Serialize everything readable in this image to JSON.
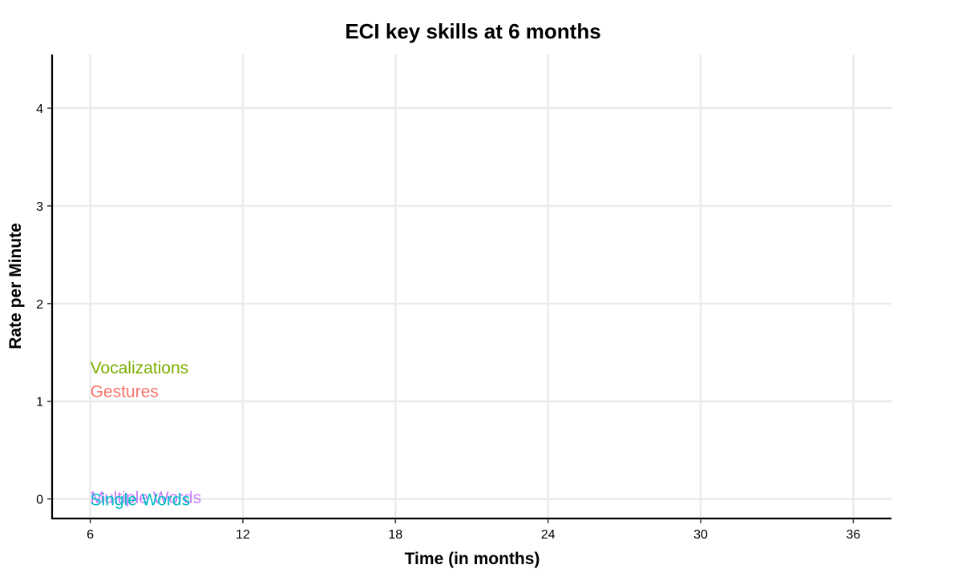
{
  "chart_data": {
    "type": "scatter",
    "title": "ECI key skills at 6 months",
    "xlabel": "Time (in months)",
    "ylabel": "Rate per Minute",
    "xlim": [
      4.5,
      37.5
    ],
    "ylim": [
      -0.2,
      4.55
    ],
    "x_ticks": [
      6,
      12,
      18,
      24,
      30,
      36
    ],
    "y_ticks": [
      0,
      1,
      2,
      3,
      4
    ],
    "grid": true,
    "series": [
      {
        "name": "Vocalizations",
        "color": "#7cae00",
        "x": [
          6
        ],
        "y": [
          1.35
        ]
      },
      {
        "name": "Gestures",
        "color": "#f8766d",
        "x": [
          6
        ],
        "y": [
          1.11
        ]
      },
      {
        "name": "Multiple Words",
        "color": "#c77cff",
        "x": [
          6
        ],
        "y": [
          0.02
        ]
      },
      {
        "name": "Single Words",
        "color": "#00bfc4",
        "x": [
          6
        ],
        "y": [
          0.0
        ]
      }
    ]
  }
}
